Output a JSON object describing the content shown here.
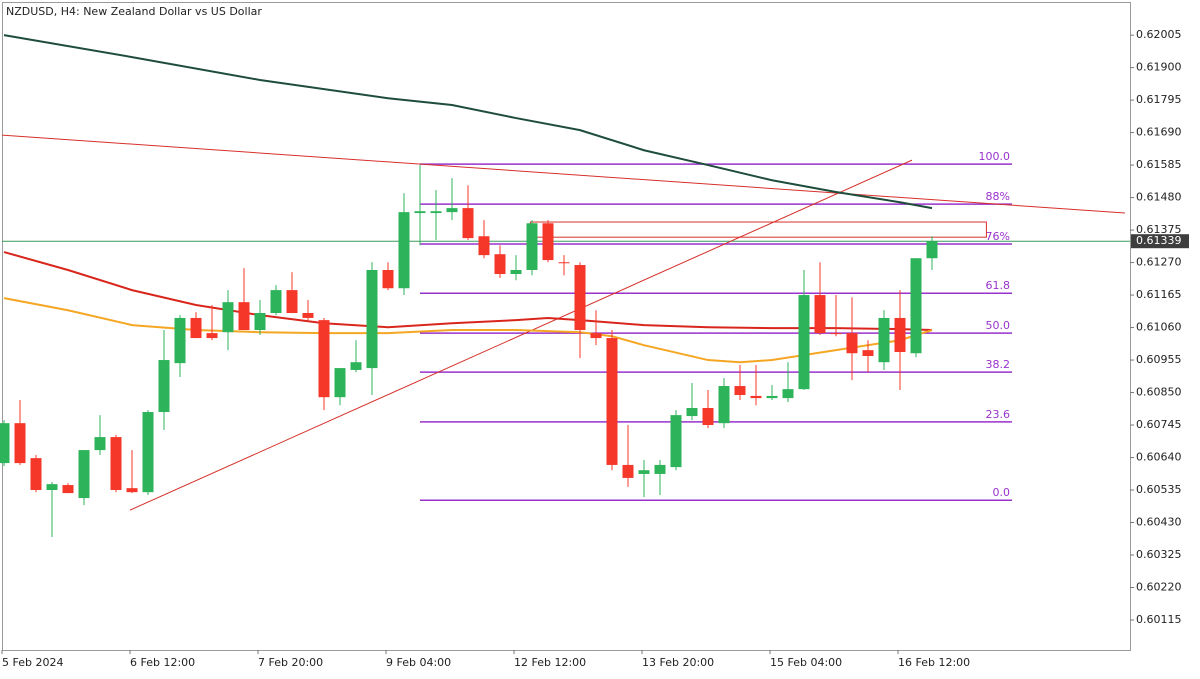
{
  "chart_data": {
    "type": "candlestick",
    "title": "NZDUSD, H4:  New Zealand Dollar vs US Dollar",
    "categories": [
      "5 Feb 2024",
      null,
      null,
      null,
      null,
      null,
      null,
      null,
      "6 Feb 12:00",
      null,
      null,
      null,
      null,
      null,
      null,
      null,
      "7 Feb 20:00",
      null,
      null,
      null,
      null,
      null,
      null,
      null,
      "9 Feb 04:00",
      null,
      null,
      null,
      null,
      null,
      null,
      null,
      "12 Feb 12:00",
      null,
      null,
      null,
      null,
      null,
      null,
      null,
      "13 Feb 20:00",
      null,
      null,
      null,
      null,
      null,
      null,
      null,
      "15 Feb 04:00",
      null,
      null,
      null,
      null,
      null,
      null,
      null,
      "16 Feb 12:00",
      null,
      null
    ],
    "open": [
      0.60622,
      0.60751,
      0.60638,
      0.60535,
      0.60551,
      0.60509,
      0.60664,
      0.60706,
      0.60541,
      0.60528,
      0.60787,
      0.60945,
      0.61091,
      0.61042,
      0.61045,
      0.61142,
      0.61052,
      0.61107,
      0.61181,
      0.61107,
      0.61084,
      0.60835,
      0.60923,
      0.60929,
      0.61246,
      0.61187,
      0.6143,
      0.6143,
      0.61433,
      0.61446,
      0.61355,
      0.61297,
      0.61233,
      0.61246,
      0.61397,
      0.61271,
      0.61262,
      0.61042,
      0.61026,
      0.60616,
      0.60587,
      0.60587,
      0.60609,
      0.60774,
      0.608,
      0.60751,
      0.60871,
      0.60839,
      0.60832,
      0.60832,
      0.60861,
      0.61165,
      0.61042,
      0.61042,
      0.60987,
      0.60948,
      0.61091,
      0.60977,
      0.61284
    ],
    "high": [
      0.60761,
      0.60826,
      0.60648,
      0.60561,
      0.60557,
      0.60664,
      0.60777,
      0.60713,
      0.60664,
      0.60793,
      0.61052,
      0.611,
      0.6111,
      0.61133,
      0.61181,
      0.61252,
      0.61149,
      0.61197,
      0.61239,
      0.61149,
      0.61091,
      0.60929,
      0.61019,
      0.61271,
      0.61271,
      0.61494,
      0.61585,
      0.61504,
      0.61543,
      0.6152,
      0.61407,
      0.61326,
      0.61294,
      0.61407,
      0.61407,
      0.61294,
      0.61271,
      0.61116,
      0.61052,
      0.60745,
      0.60632,
      0.60632,
      0.60793,
      0.60881,
      0.60858,
      0.60897,
      0.60939,
      0.60939,
      0.60874,
      0.60948,
      0.61246,
      0.61271,
      0.61165,
      0.61158,
      0.61019,
      0.61116,
      0.61181,
      0.61284,
      0.61355
    ],
    "low": [
      0.60612,
      0.60616,
      0.60528,
      0.60383,
      0.60525,
      0.60486,
      0.60648,
      0.60528,
      0.60525,
      0.60519,
      0.60729,
      0.609,
      0.61026,
      0.61019,
      0.60987,
      0.61052,
      0.61036,
      0.611,
      0.61107,
      0.61084,
      0.60793,
      0.60809,
      0.60916,
      0.60842,
      0.61181,
      0.61165,
      0.61326,
      0.61343,
      0.61407,
      0.61343,
      0.61284,
      0.6122,
      0.61213,
      0.61229,
      0.61271,
      0.61229,
      0.60961,
      0.61003,
      0.60599,
      0.60545,
      0.60512,
      0.60519,
      0.60599,
      0.60761,
      0.60735,
      0.60735,
      0.60826,
      0.60809,
      0.60826,
      0.60819,
      0.60858,
      0.61036,
      0.61032,
      0.6089,
      0.60916,
      0.60923,
      0.60858,
      0.60964,
      0.61246
    ],
    "close": [
      0.60751,
      0.60622,
      0.60535,
      0.60554,
      0.60525,
      0.60664,
      0.60706,
      0.60535,
      0.60528,
      0.60787,
      0.60955,
      0.61091,
      0.61026,
      0.61026,
      0.61142,
      0.61052,
      0.61107,
      0.61181,
      0.61107,
      0.61091,
      0.60835,
      0.60929,
      0.60948,
      0.61246,
      0.61187,
      0.61433,
      0.61436,
      0.61436,
      0.61446,
      0.61349,
      0.61294,
      0.61233,
      0.61246,
      0.61397,
      0.61278,
      0.61268,
      0.61052,
      0.61026,
      0.60616,
      0.60574,
      0.60599,
      0.60616,
      0.60777,
      0.608,
      0.60745,
      0.60871,
      0.60842,
      0.60832,
      0.60839,
      0.60861,
      0.61165,
      0.61042,
      0.61039,
      0.60977,
      0.60968,
      0.61091,
      0.60981,
      0.61284,
      0.61339
    ],
    "up_color": "#2db35a",
    "down_color": "#f5372a",
    "lines": [
      {
        "color": "#1e4d3b",
        "x": [
          0,
          8,
          16,
          24,
          28,
          32,
          36,
          40,
          44,
          48,
          52,
          56,
          58
        ],
        "values": [
          0.62005,
          0.61934,
          0.6186,
          0.61801,
          0.61779,
          0.61737,
          0.61698,
          0.61633,
          0.61585,
          0.61536,
          0.61498,
          0.61465,
          0.61446
        ]
      },
      {
        "color": "#d9261c",
        "x": [
          0,
          4,
          8,
          12,
          16,
          20,
          24,
          28,
          32,
          34,
          36,
          40,
          44,
          48,
          52,
          56,
          58
        ],
        "values": [
          0.61304,
          0.61246,
          0.61181,
          0.61133,
          0.611,
          0.61074,
          0.61061,
          0.61074,
          0.61084,
          0.61091,
          0.61084,
          0.61068,
          0.61061,
          0.61058,
          0.61058,
          0.61055,
          0.61052
        ]
      },
      {
        "color": "#f5a623",
        "x": [
          0,
          4,
          8,
          12,
          16,
          20,
          24,
          28,
          32,
          36,
          38,
          40,
          44,
          46,
          48,
          52,
          56,
          58
        ],
        "values": [
          0.61155,
          0.61116,
          0.61068,
          0.61052,
          0.61045,
          0.61042,
          0.61042,
          0.61052,
          0.61052,
          0.61045,
          0.61032,
          0.61003,
          0.60955,
          0.60948,
          0.60955,
          0.60987,
          0.61019,
          0.61052
        ]
      }
    ],
    "trendlines": [
      {
        "color": "#d6302a",
        "x": [
          7.875,
          56.75
        ],
        "values": [
          0.6047,
          0.61601
        ]
      },
      {
        "color": "#d6302a",
        "x": [
          -0.125,
          70.06
        ],
        "values": [
          0.61682,
          0.6143
        ]
      }
    ],
    "zones": [
      {
        "color": "#d6302a",
        "x": [
          32.9,
          61.4
        ],
        "values": [
          0.61401,
          0.61352
        ]
      }
    ],
    "fibonacci": {
      "color": "#9932cc",
      "x": [
        26,
        63
      ],
      "levels": [
        {
          "label": "100.0",
          "value": 0.61588
        },
        {
          "label": "88%",
          "value": 0.61459
        },
        {
          "label": "76%",
          "value": 0.6133
        },
        {
          "label": "61.8",
          "value": 0.61171
        },
        {
          "label": "50.0",
          "value": 0.61042
        },
        {
          "label": "38.2",
          "value": 0.60916
        },
        {
          "label": "23.6",
          "value": 0.60755
        },
        {
          "label": "0.0",
          "value": 0.60502
        }
      ]
    },
    "last_price": 0.61339,
    "last_price_color": "#3a9a5b",
    "ylim": [
      0.60018,
      0.62112
    ],
    "yticks": [
      0.62005,
      {
        "value": 0.619,
        "label": "0.61900"
      },
      0.61795,
      {
        "value": 0.6169,
        "label": "0.61690"
      },
      0.61585,
      {
        "value": 0.6148,
        "label": "0.61480"
      },
      0.61375,
      {
        "value": 0.6127,
        "label": "0.61270"
      },
      0.61165,
      {
        "value": 0.6106,
        "label": "0.61060"
      },
      0.60955,
      {
        "value": 0.6085,
        "label": "0.60850"
      },
      0.60745,
      {
        "value": 0.6064,
        "label": "0.60640"
      },
      0.60535,
      {
        "value": 0.6043,
        "label": "0.60430"
      },
      0.60325,
      {
        "value": 0.6022,
        "label": "0.60220"
      },
      0.60115
    ]
  }
}
